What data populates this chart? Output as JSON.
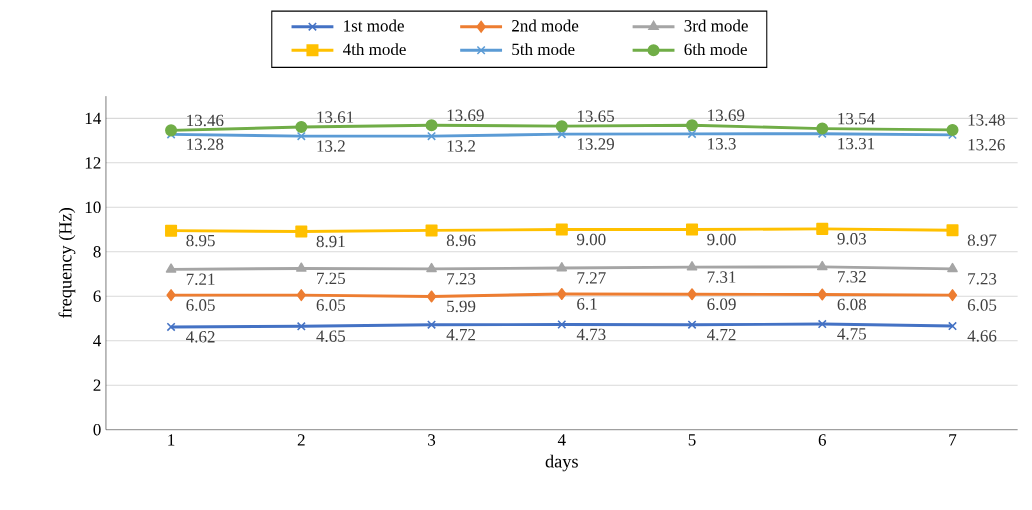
{
  "chart_data": {
    "type": "line",
    "xlabel": "days",
    "ylabel": "frequency (Hz)",
    "categories": [
      "1",
      "2",
      "3",
      "4",
      "5",
      "6",
      "7"
    ],
    "ylim": [
      0,
      15
    ],
    "yticks": [
      0,
      2,
      4,
      6,
      8,
      10,
      12,
      14
    ],
    "grid": "y",
    "legend": "top",
    "line_style": "solid",
    "series": [
      {
        "name": "1st mode",
        "color": "#4472c4",
        "marker": "cross",
        "values": [
          4.62,
          4.65,
          4.72,
          4.73,
          4.72,
          4.75,
          4.66
        ],
        "value_labels": [
          "4.62",
          "4.65",
          "4.72",
          "4.73",
          "4.72",
          "4.75",
          "4.66"
        ]
      },
      {
        "name": "2nd mode",
        "color": "#ed7d31",
        "marker": "diamond",
        "values": [
          6.05,
          6.05,
          5.99,
          6.1,
          6.09,
          6.08,
          6.05
        ],
        "value_labels": [
          "6.05",
          "6.05",
          "5.99",
          "6.1",
          "6.09",
          "6.08",
          "6.05"
        ]
      },
      {
        "name": "3rd mode",
        "color": "#a5a5a5",
        "marker": "triangle",
        "values": [
          7.21,
          7.25,
          7.23,
          7.27,
          7.31,
          7.32,
          7.23
        ],
        "value_labels": [
          "7.21",
          "7.25",
          "7.23",
          "7.27",
          "7.31",
          "7.32",
          "7.23"
        ]
      },
      {
        "name": "4th mode",
        "color": "#ffc000",
        "marker": "square",
        "values": [
          8.95,
          8.91,
          8.96,
          9.0,
          9.0,
          9.03,
          8.97
        ],
        "value_labels": [
          "8.95",
          "8.91",
          "8.96",
          "9.00",
          "9.00",
          "9.03",
          "8.97"
        ]
      },
      {
        "name": "5th mode",
        "color": "#5b9bd5",
        "marker": "cross",
        "values": [
          13.28,
          13.2,
          13.2,
          13.29,
          13.3,
          13.31,
          13.26
        ],
        "value_labels": [
          "13.28",
          "13.2",
          "13.2",
          "13.29",
          "13.3",
          "13.31",
          "13.26"
        ]
      },
      {
        "name": "6th mode",
        "color": "#70ad47",
        "marker": "circle",
        "values": [
          13.46,
          13.61,
          13.69,
          13.65,
          13.69,
          13.54,
          13.48
        ],
        "value_labels": [
          "13.46",
          "13.61",
          "13.69",
          "13.65",
          "13.69",
          "13.54",
          "13.48"
        ]
      }
    ]
  }
}
